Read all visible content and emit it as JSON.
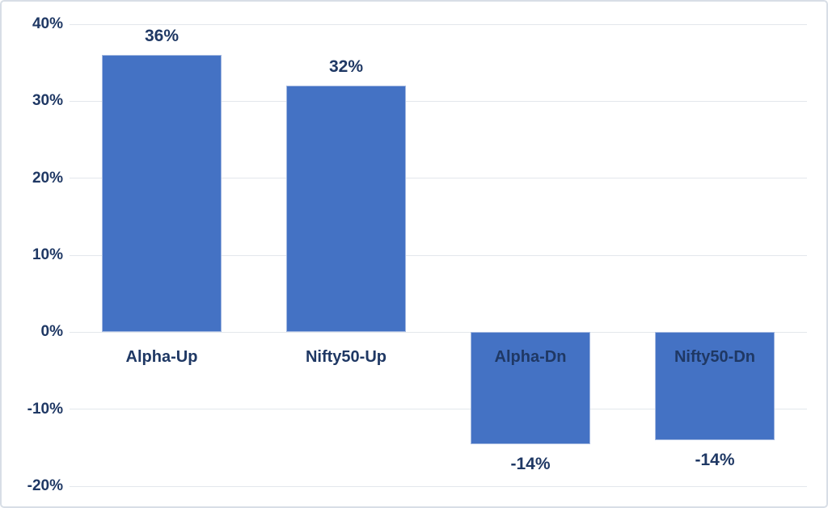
{
  "chart_data": {
    "type": "bar",
    "title": "",
    "xlabel": "",
    "ylabel": "",
    "categories": [
      "Alpha-Up",
      "Nifty50-Up",
      "Alpha-Dn",
      "Nifty50-Dn"
    ],
    "values": [
      36,
      32,
      -14.5,
      -14
    ],
    "data_labels": [
      "36%",
      "32%",
      "-14%",
      "-14%"
    ],
    "y_ticks": [
      {
        "value": 40,
        "label": "40%"
      },
      {
        "value": 30,
        "label": "30%"
      },
      {
        "value": 20,
        "label": "20%"
      },
      {
        "value": 10,
        "label": "10%"
      },
      {
        "value": 0,
        "label": "0%"
      },
      {
        "value": -10,
        "label": "-10%"
      },
      {
        "value": -20,
        "label": "-20%"
      }
    ],
    "ylim": [
      -20,
      40
    ],
    "grid": true,
    "legend": false,
    "colors": {
      "bar_fill": "#4472c4",
      "bar_border": "#a3b8e0",
      "label_text": "#1f3864",
      "gridline": "#e3e7ec",
      "chart_border": "#d8dee6",
      "background": "#ffffff"
    }
  }
}
